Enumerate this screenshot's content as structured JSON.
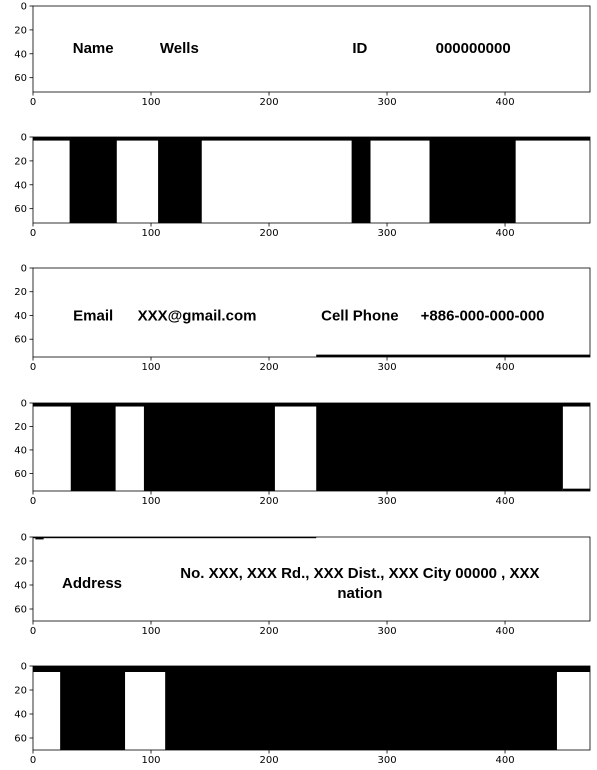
{
  "chart_data": [
    {
      "type": "heatmap",
      "xlim": [
        0,
        472
      ],
      "ylim": [
        72,
        0
      ],
      "xticks": [
        0,
        100,
        200,
        300,
        400
      ],
      "yticks": [
        0,
        20,
        40,
        60
      ],
      "texts": [
        {
          "lines": [
            "Name"
          ],
          "x": 51,
          "y": 36
        },
        {
          "lines": [
            "Wells"
          ],
          "x": 124,
          "y": 36
        },
        {
          "lines": [
            "ID"
          ],
          "x": 277,
          "y": 36
        },
        {
          "lines": [
            "000000000"
          ],
          "x": 373,
          "y": 36
        }
      ],
      "black_regions": []
    },
    {
      "type": "heatmap",
      "xlim": [
        0,
        472
      ],
      "ylim": [
        72,
        0
      ],
      "xticks": [
        0,
        100,
        200,
        300,
        400
      ],
      "yticks": [
        0,
        20,
        40,
        60
      ],
      "texts": [],
      "black_regions": [
        {
          "x0": 0,
          "x1": 472,
          "y0": 0,
          "y1": 3
        },
        {
          "x0": 31,
          "x1": 71,
          "y0": 0,
          "y1": 72
        },
        {
          "x0": 106,
          "x1": 143,
          "y0": 0,
          "y1": 72
        },
        {
          "x0": 270,
          "x1": 286,
          "y0": 0,
          "y1": 72
        },
        {
          "x0": 336,
          "x1": 409,
          "y0": 0,
          "y1": 72
        }
      ]
    },
    {
      "type": "heatmap",
      "xlim": [
        0,
        472
      ],
      "ylim": [
        75,
        0
      ],
      "xticks": [
        0,
        100,
        200,
        300,
        400
      ],
      "yticks": [
        0,
        20,
        40,
        60
      ],
      "texts": [
        {
          "lines": [
            "Email"
          ],
          "x": 51,
          "y": 41
        },
        {
          "lines": [
            "XXX@gmail.com"
          ],
          "x": 139,
          "y": 41
        },
        {
          "lines": [
            "Cell Phone"
          ],
          "x": 277,
          "y": 41
        },
        {
          "lines": [
            "+886-000-000-000"
          ],
          "x": 381,
          "y": 41
        }
      ],
      "black_regions": [
        {
          "x0": 240,
          "x1": 472,
          "y0": 73,
          "y1": 75
        }
      ]
    },
    {
      "type": "heatmap",
      "xlim": [
        0,
        472
      ],
      "ylim": [
        75,
        0
      ],
      "xticks": [
        0,
        100,
        200,
        300,
        400
      ],
      "yticks": [
        0,
        20,
        40,
        60
      ],
      "texts": [],
      "black_regions": [
        {
          "x0": 0,
          "x1": 472,
          "y0": 0,
          "y1": 3
        },
        {
          "x0": 32,
          "x1": 70,
          "y0": 0,
          "y1": 75
        },
        {
          "x0": 94,
          "x1": 205,
          "y0": 0,
          "y1": 75
        },
        {
          "x0": 240,
          "x1": 449,
          "y0": 0,
          "y1": 75
        },
        {
          "x0": 449,
          "x1": 472,
          "y0": 73,
          "y1": 75
        }
      ]
    },
    {
      "type": "heatmap",
      "xlim": [
        0,
        472
      ],
      "ylim": [
        70,
        0
      ],
      "xticks": [
        0,
        100,
        200,
        300,
        400
      ],
      "yticks": [
        0,
        20,
        40,
        60
      ],
      "texts": [
        {
          "lines": [
            "Address"
          ],
          "x": 50,
          "y": 39
        },
        {
          "lines": [
            "No. XXX, XXX Rd., XXX Dist., XXX City 00000 , XXX",
            "nation"
          ],
          "x": 277,
          "y": 31
        }
      ],
      "black_regions": [
        {
          "x0": 0,
          "x1": 240,
          "y0": 0,
          "y1": 1
        },
        {
          "x0": 2,
          "x1": 9,
          "y0": 0,
          "y1": 2
        }
      ]
    },
    {
      "type": "heatmap",
      "xlim": [
        0,
        472
      ],
      "ylim": [
        70,
        0
      ],
      "xticks": [
        0,
        100,
        200,
        300,
        400
      ],
      "yticks": [
        0,
        20,
        40,
        60
      ],
      "texts": [],
      "black_regions": [
        {
          "x0": 0,
          "x1": 472,
          "y0": 0,
          "y1": 5
        },
        {
          "x0": 23,
          "x1": 78,
          "y0": 0,
          "y1": 70
        },
        {
          "x0": 112,
          "x1": 444,
          "y0": 0,
          "y1": 70
        }
      ]
    }
  ]
}
